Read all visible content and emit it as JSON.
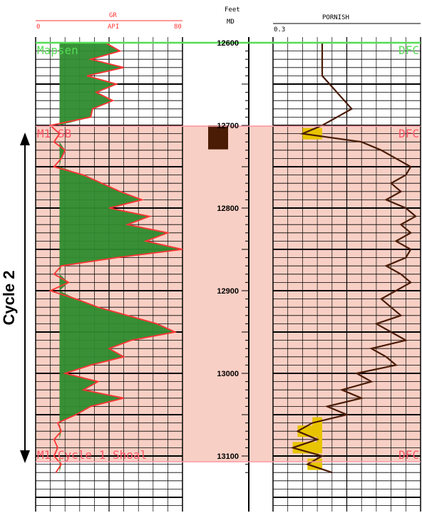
{
  "chart_data": {
    "type": "well-log",
    "depth_track": {
      "header": [
        "Feet",
        "MD"
      ],
      "depth_ticks": [
        "12600",
        "12700",
        "12800",
        "12900",
        "13000",
        "13100"
      ],
      "depth_range": [
        12600,
        13123
      ]
    },
    "gr_track": {
      "curve_label": "GR",
      "unit_label": "API",
      "scale_min": "0",
      "scale_max": "80",
      "curve_color": "#ff3333",
      "fill_color": "#2e8b2e",
      "series": [
        [
          12600,
          38
        ],
        [
          12610,
          46
        ],
        [
          12620,
          30
        ],
        [
          12630,
          48
        ],
        [
          12640,
          28
        ],
        [
          12650,
          44
        ],
        [
          12660,
          33
        ],
        [
          12670,
          42
        ],
        [
          12680,
          31
        ],
        [
          12690,
          30
        ],
        [
          12700,
          8
        ],
        [
          12710,
          13
        ],
        [
          12720,
          10
        ],
        [
          12730,
          16
        ],
        [
          12740,
          14
        ],
        [
          12750,
          10
        ],
        [
          12760,
          26
        ],
        [
          12770,
          36
        ],
        [
          12780,
          46
        ],
        [
          12790,
          58
        ],
        [
          12800,
          40
        ],
        [
          12810,
          62
        ],
        [
          12820,
          50
        ],
        [
          12830,
          72
        ],
        [
          12840,
          60
        ],
        [
          12850,
          80
        ],
        [
          12860,
          44
        ],
        [
          12870,
          14
        ],
        [
          12880,
          10
        ],
        [
          12890,
          18
        ],
        [
          12900,
          8
        ],
        [
          12910,
          22
        ],
        [
          12920,
          34
        ],
        [
          12930,
          50
        ],
        [
          12940,
          66
        ],
        [
          12950,
          76
        ],
        [
          12960,
          52
        ],
        [
          12970,
          40
        ],
        [
          12980,
          48
        ],
        [
          12990,
          30
        ],
        [
          13000,
          16
        ],
        [
          13010,
          34
        ],
        [
          13020,
          26
        ],
        [
          13030,
          48
        ],
        [
          13040,
          30
        ],
        [
          13050,
          22
        ],
        [
          13060,
          12
        ],
        [
          13070,
          14
        ],
        [
          13080,
          10
        ],
        [
          13090,
          12
        ],
        [
          13100,
          10
        ],
        [
          13110,
          14
        ],
        [
          13120,
          11
        ]
      ]
    },
    "porosity_track": {
      "title": "PORNISH",
      "scale_left": "0.3",
      "curve_color": "#4a1c06",
      "fill_color": "#e8c400",
      "series": [
        [
          12600,
          0.2
        ],
        [
          12640,
          0.2
        ],
        [
          12680,
          0.14
        ],
        [
          12700,
          0.2
        ],
        [
          12710,
          0.24
        ],
        [
          12720,
          0.12
        ],
        [
          12730,
          0.08
        ],
        [
          12740,
          0.05
        ],
        [
          12750,
          0.02
        ],
        [
          12760,
          0.03
        ],
        [
          12770,
          0.06
        ],
        [
          12780,
          0.04
        ],
        [
          12790,
          0.07
        ],
        [
          12800,
          0.03
        ],
        [
          12810,
          0.01
        ],
        [
          12820,
          0.04
        ],
        [
          12830,
          0.02
        ],
        [
          12840,
          0.05
        ],
        [
          12850,
          0.02
        ],
        [
          12860,
          0.03
        ],
        [
          12870,
          0.07
        ],
        [
          12880,
          0.04
        ],
        [
          12890,
          0.02
        ],
        [
          12900,
          0.05
        ],
        [
          12910,
          0.08
        ],
        [
          12920,
          0.06
        ],
        [
          12930,
          0.04
        ],
        [
          12940,
          0.09
        ],
        [
          12950,
          0.06
        ],
        [
          12960,
          0.03
        ],
        [
          12970,
          0.1
        ],
        [
          12980,
          0.07
        ],
        [
          12990,
          0.05
        ],
        [
          13000,
          0.13
        ],
        [
          13010,
          0.1
        ],
        [
          13020,
          0.16
        ],
        [
          13030,
          0.12
        ],
        [
          13040,
          0.19
        ],
        [
          13050,
          0.15
        ],
        [
          13060,
          0.22
        ],
        [
          13070,
          0.25
        ],
        [
          13080,
          0.21
        ],
        [
          13090,
          0.26
        ],
        [
          13100,
          0.2
        ],
        [
          13110,
          0.23
        ],
        [
          13120,
          0.18
        ]
      ]
    },
    "formation_tops": [
      {
        "depth": 12600,
        "name": "Mapsen",
        "flag": "DFC"
      },
      {
        "depth": 12701,
        "name": "M1 SB",
        "flag": "DFC"
      },
      {
        "depth": 13107,
        "name": "M1 Cycle 1 Shoal",
        "flag": "DFC"
      }
    ],
    "core_interval": {
      "top": 12700,
      "base": 12729,
      "color": "#4a1c06"
    },
    "cycle_annotation": {
      "label": "Cycle 2",
      "top": 12700,
      "base": 13107
    },
    "colors": {
      "cycle_shade": "#f8cfc4",
      "top_marker_green": "#55dd55",
      "top_marker_pink": "#ff9aa8",
      "grid": "#000000"
    }
  }
}
